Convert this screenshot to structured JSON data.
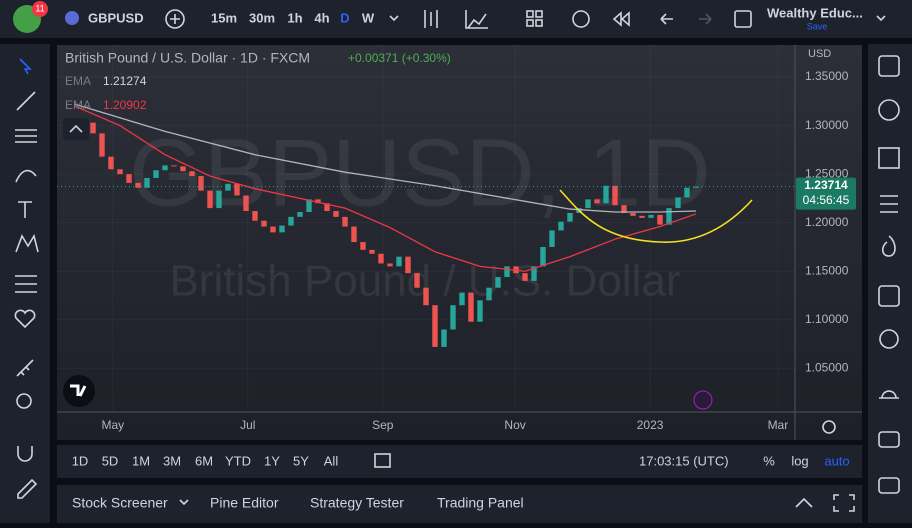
{
  "toolbar": {
    "badge": "11",
    "symbol": "GBPUSD",
    "intervals": [
      "15m",
      "30m",
      "1h",
      "4h",
      "D",
      "W"
    ],
    "account": "Wealthy Educ...",
    "save": "Save"
  },
  "chart_data": {
    "type": "candlestick",
    "title": "British Pound / U.S. Dollar · 1D · FXCM",
    "change": "+0.00371 (+0.30%)",
    "watermark": "GBPUSD, 1D",
    "watermark_subtitle": "British Pound / U.S. Dollar",
    "currency": "USD",
    "series": [
      {
        "name": "GBPUSD",
        "up_color": "#26a69a",
        "down_color": "#ef5350",
        "values": [
          1.306,
          1.303,
          1.292,
          1.268,
          1.255,
          1.25,
          1.241,
          1.236,
          1.246,
          1.254,
          1.259,
          1.258,
          1.253,
          1.248,
          1.233,
          1.215,
          1.233,
          1.24,
          1.228,
          1.212,
          1.202,
          1.196,
          1.19,
          1.197,
          1.206,
          1.211,
          1.224,
          1.22,
          1.212,
          1.206,
          1.196,
          1.18,
          1.172,
          1.168,
          1.158,
          1.155,
          1.165,
          1.148,
          1.133,
          1.115,
          1.072,
          1.09,
          1.115,
          1.128,
          1.098,
          1.12,
          1.133,
          1.144,
          1.155,
          1.148,
          1.14,
          1.155,
          1.175,
          1.192,
          1.201,
          1.21,
          1.215,
          1.224,
          1.22,
          1.238,
          1.218,
          1.21,
          1.207,
          1.205,
          1.208,
          1.198,
          1.215,
          1.226,
          1.236,
          1.237
        ]
      }
    ],
    "indicators": [
      {
        "name": "EMA",
        "last": 1.21274,
        "color": "#b2b5be",
        "x": [
          0,
          10,
          20,
          30,
          40,
          50,
          55,
          60,
          65,
          69
        ],
        "values": [
          1.322,
          1.294,
          1.27,
          1.252,
          1.238,
          1.222,
          1.214,
          1.211,
          1.211,
          1.212
        ]
      },
      {
        "name": "EMA",
        "last": 1.20902,
        "color": "#f23645",
        "x": [
          0,
          5,
          10,
          15,
          20,
          25,
          30,
          35,
          40,
          45,
          50,
          55,
          60,
          65,
          69
        ],
        "values": [
          1.32,
          1.3,
          1.27,
          1.248,
          1.235,
          1.225,
          1.215,
          1.195,
          1.17,
          1.155,
          1.15,
          1.165,
          1.183,
          1.196,
          1.209
        ]
      }
    ],
    "last_price": 1.23714,
    "countdown": "04:56:45",
    "xlim": [
      -2,
      80
    ],
    "xticks": [
      {
        "value": 4.2,
        "label": "May"
      },
      {
        "value": 19.2,
        "label": "Jul"
      },
      {
        "value": 34.2,
        "label": "Sep"
      },
      {
        "value": 48.9,
        "label": "Nov"
      },
      {
        "value": 63.9,
        "label": "2023"
      },
      {
        "value": 78.1,
        "label": "Mar"
      }
    ],
    "ylim": [
      1.005,
      1.383
    ],
    "yticks": [
      {
        "value": 1.35,
        "label": "1.35000"
      },
      {
        "value": 1.3,
        "label": "1.30000"
      },
      {
        "value": 1.25,
        "label": "1.25000"
      },
      {
        "value": 1.2,
        "label": "1.20000"
      },
      {
        "value": 1.15,
        "label": "1.15000"
      },
      {
        "value": 1.1,
        "label": "1.10000"
      },
      {
        "value": 1.05,
        "label": "1.05000"
      }
    ]
  },
  "range_bar": {
    "ranges": [
      "1D",
      "5D",
      "1M",
      "3M",
      "6M",
      "YTD",
      "1Y",
      "5Y",
      "All"
    ],
    "clock": "17:03:15 (UTC)",
    "scale_options": [
      "%",
      "log",
      "auto"
    ]
  },
  "panel": {
    "tabs": [
      "Stock Screener",
      "Pine Editor",
      "Strategy Tester",
      "Trading Panel"
    ]
  }
}
